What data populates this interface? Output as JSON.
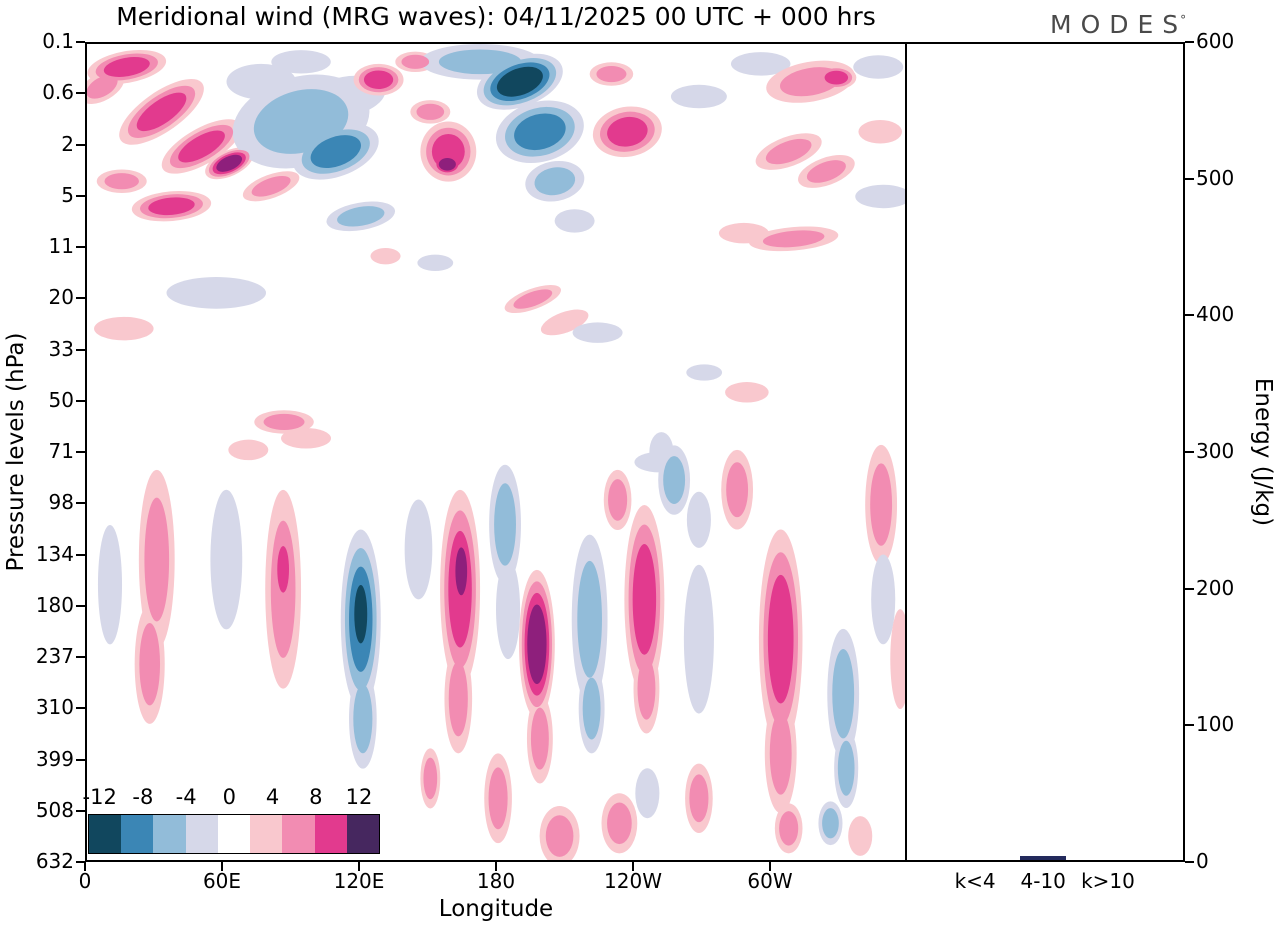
{
  "title": "Meridional wind (MRG waves):  04/11/2025  00 UTC  + 000 hrs",
  "logo": {
    "text": "MODES",
    "mark": "°"
  },
  "chart_data": {
    "type": "heatmap",
    "title": "Meridional wind (MRG waves):  04/11/2025  00 UTC  + 000 hrs",
    "xlabel": "Longitude",
    "ylabel_left": "Pressure levels (hPa)",
    "ylabel_right": "Energy (J/kg)",
    "x_ticks": [
      "0",
      "60E",
      "120E",
      "180",
      "120W",
      "60W"
    ],
    "x_tick_lons": [
      0,
      60,
      120,
      180,
      240,
      300
    ],
    "x_range_deg": [
      0,
      360
    ],
    "pressure_ticks": [
      "0.1",
      "0.6",
      "2",
      "5",
      "11",
      "20",
      "33",
      "50",
      "71",
      "98",
      "134",
      "180",
      "237",
      "310",
      "399",
      "508",
      "632"
    ],
    "energy_ticks": [
      "0",
      "100",
      "200",
      "300",
      "400",
      "500",
      "600"
    ],
    "energy_range": [
      0,
      600
    ],
    "grid": false,
    "colorbar": {
      "labels": [
        "-12",
        "-8",
        "-4",
        "0",
        "4",
        "8",
        "12"
      ],
      "segments": [
        "#11475e",
        "#3b86b5",
        "#92bcd9",
        "#d6d8e9",
        "#ffffff",
        "#f9c8ce",
        "#f28cb2",
        "#e23a8e",
        "#46275f"
      ]
    },
    "palette": {
      "negative": [
        "#d6d8e9",
        "#92bcd9",
        "#3b86b5",
        "#11475e"
      ],
      "positive": [
        "#f9c8ce",
        "#f28cb2",
        "#e23a8e",
        "#8e1f7c"
      ]
    },
    "features_legend": [
      "lon_deg",
      "level_index_0.1_to_632",
      "rx_deg",
      "ry_levels",
      "rot_deg",
      "amplitude"
    ],
    "features": [
      [
        17.5,
        0.45,
        17.5,
        0.31,
        -10,
        11
      ],
      [
        6.6,
        0.84,
        10.9,
        0.27,
        -30,
        7
      ],
      [
        32.8,
        1.33,
        21.9,
        0.39,
        -35,
        9
      ],
      [
        50.4,
        2.01,
        19.7,
        0.35,
        -30,
        10
      ],
      [
        62.6,
        2.34,
        11.4,
        0.25,
        -25,
        14
      ],
      [
        81.0,
        2.79,
        13.1,
        0.23,
        -20,
        6
      ],
      [
        37.2,
        3.18,
        17.5,
        0.29,
        -5,
        11
      ],
      [
        15.3,
        2.69,
        11.0,
        0.23,
        0,
        5
      ],
      [
        94.2,
        1.52,
        30.7,
        0.88,
        -15,
        -6
      ],
      [
        109.5,
        2.11,
        19.7,
        0.49,
        -20,
        -9
      ],
      [
        113.9,
        1.03,
        17.5,
        0.39,
        -10,
        -4
      ],
      [
        76.7,
        0.74,
        15.3,
        0.35,
        0,
        -4
      ],
      [
        120.5,
        3.38,
        15.3,
        0.27,
        -10,
        -7
      ],
      [
        94.2,
        0.35,
        13.1,
        0.23,
        0,
        -4
      ],
      [
        128.3,
        0.7,
        11.0,
        0.31,
        0,
        9
      ],
      [
        144.5,
        0.35,
        8.8,
        0.2,
        0,
        5
      ],
      [
        190.5,
        0.74,
        19.7,
        0.49,
        -20,
        -15
      ],
      [
        199.3,
        1.72,
        19.7,
        0.59,
        -15,
        -11
      ],
      [
        205.9,
        2.69,
        13.1,
        0.39,
        -10,
        -8
      ],
      [
        173.0,
        0.35,
        26.3,
        0.35,
        0,
        -6
      ],
      [
        214.6,
        3.47,
        8.8,
        0.23,
        0,
        -4
      ],
      [
        159.0,
        2.11,
        12.3,
        0.59,
        0,
        10
      ],
      [
        158.6,
        2.36,
        7.0,
        0.23,
        0,
        13
      ],
      [
        151.1,
        1.33,
        8.8,
        0.23,
        0,
        5
      ],
      [
        237.8,
        1.72,
        15.3,
        0.49,
        -10,
        9
      ],
      [
        230.8,
        0.59,
        9.6,
        0.23,
        0,
        7
      ],
      [
        269.3,
        1.03,
        12.3,
        0.23,
        0,
        -4
      ],
      [
        296.5,
        0.39,
        13.1,
        0.23,
        0,
        -4
      ],
      [
        318.4,
        0.74,
        19.7,
        0.39,
        -10,
        8
      ],
      [
        329.8,
        0.66,
        8.8,
        0.23,
        0,
        11
      ],
      [
        348.2,
        0.45,
        11.0,
        0.23,
        0,
        -4
      ],
      [
        349.1,
        1.72,
        9.6,
        0.23,
        0,
        4
      ],
      [
        308.8,
        2.11,
        15.3,
        0.29,
        -20,
        7
      ],
      [
        325.4,
        2.5,
        13.1,
        0.27,
        -20,
        5
      ],
      [
        350.4,
        2.99,
        12.3,
        0.23,
        0,
        -4
      ],
      [
        311.0,
        3.82,
        19.7,
        0.23,
        -5,
        6
      ],
      [
        289.1,
        3.71,
        11.0,
        0.2,
        0,
        4
      ],
      [
        56.9,
        4.88,
        21.9,
        0.31,
        0,
        -3
      ],
      [
        16.2,
        5.58,
        13.1,
        0.23,
        0,
        4
      ],
      [
        196.2,
        5.0,
        13.1,
        0.2,
        -20,
        5
      ],
      [
        210.2,
        5.46,
        11.0,
        0.2,
        -20,
        4
      ],
      [
        224.7,
        5.66,
        11.0,
        0.2,
        0,
        -3
      ],
      [
        153.3,
        4.29,
        7.9,
        0.16,
        0,
        -3
      ],
      [
        131.4,
        4.16,
        6.6,
        0.16,
        0,
        4
      ],
      [
        86.7,
        7.41,
        13.1,
        0.23,
        0,
        5
      ],
      [
        96.4,
        7.73,
        11.0,
        0.2,
        0,
        4
      ],
      [
        71.0,
        7.96,
        8.8,
        0.2,
        0,
        4
      ],
      [
        251.9,
        8.2,
        11.0,
        0.2,
        0,
        -3
      ],
      [
        290.4,
        6.83,
        9.6,
        0.2,
        0,
        4
      ],
      [
        271.6,
        6.44,
        7.9,
        0.16,
        0,
        -3
      ],
      [
        30.7,
        10.11,
        7.9,
        1.76,
        0,
        6
      ],
      [
        27.6,
        12.16,
        6.6,
        1.17,
        0,
        5
      ],
      [
        10.1,
        10.6,
        5.3,
        1.17,
        0,
        -3
      ],
      [
        61.3,
        10.11,
        7.0,
        1.37,
        0,
        -4
      ],
      [
        86.3,
        10.69,
        7.9,
        1.95,
        0,
        7
      ],
      [
        86.3,
        10.3,
        4.4,
        0.78,
        0,
        9
      ],
      [
        120.5,
        11.28,
        8.8,
        1.76,
        0,
        -12
      ],
      [
        120.5,
        11.18,
        5.3,
        1.07,
        0,
        -14
      ],
      [
        121.4,
        13.23,
        6.1,
        0.98,
        0,
        -6
      ],
      [
        145.9,
        9.91,
        6.1,
        0.98,
        0,
        -4
      ],
      [
        164.2,
        10.69,
        8.8,
        1.95,
        0,
        12
      ],
      [
        164.7,
        10.34,
        4.8,
        0.88,
        0,
        14
      ],
      [
        163.4,
        12.84,
        6.1,
        1.07,
        0,
        6
      ],
      [
        184.0,
        9.42,
        7.0,
        1.17,
        0,
        -7
      ],
      [
        185.3,
        11.08,
        5.3,
        0.98,
        0,
        -4
      ],
      [
        198.0,
        11.77,
        7.9,
        1.46,
        0,
        13
      ],
      [
        199.3,
        13.62,
        5.7,
        0.88,
        0,
        7
      ],
      [
        221.2,
        11.28,
        7.9,
        1.66,
        0,
        -8
      ],
      [
        222.1,
        13.03,
        5.7,
        0.88,
        0,
        -5
      ],
      [
        245.3,
        10.89,
        8.8,
        1.85,
        0,
        10
      ],
      [
        246.2,
        12.64,
        5.7,
        0.88,
        0,
        6
      ],
      [
        269.3,
        11.67,
        6.6,
        1.46,
        0,
        -4
      ],
      [
        286.1,
        8.74,
        7.0,
        0.78,
        0,
        6
      ],
      [
        305.3,
        11.67,
        9.6,
        2.15,
        0,
        11
      ],
      [
        305.3,
        13.91,
        7.0,
        1.17,
        0,
        7
      ],
      [
        332.8,
        12.74,
        7.0,
        1.27,
        0,
        -8
      ],
      [
        334.1,
        14.2,
        5.3,
        0.78,
        0,
        -5
      ],
      [
        349.5,
        9.03,
        7.0,
        1.17,
        0,
        8
      ],
      [
        350.4,
        10.89,
        5.3,
        0.88,
        0,
        -3
      ],
      [
        357.9,
        12.06,
        4.4,
        0.98,
        0,
        4
      ],
      [
        258.4,
        8.55,
        7.0,
        0.68,
        0,
        -6
      ],
      [
        252.8,
        8.0,
        5.3,
        0.39,
        0,
        -4
      ],
      [
        233.5,
        8.94,
        6.1,
        0.59,
        0,
        5
      ],
      [
        269.3,
        9.33,
        5.3,
        0.55,
        0,
        -4
      ],
      [
        180.9,
        14.79,
        6.1,
        0.88,
        0,
        6
      ],
      [
        208.0,
        15.53,
        8.8,
        0.59,
        0,
        5
      ],
      [
        234.3,
        15.28,
        7.9,
        0.59,
        0,
        6
      ],
      [
        246.6,
        14.69,
        5.3,
        0.49,
        0,
        -3
      ],
      [
        269.3,
        14.79,
        6.1,
        0.68,
        0,
        5
      ],
      [
        308.8,
        15.38,
        6.1,
        0.49,
        0,
        5
      ],
      [
        327.2,
        15.28,
        5.3,
        0.43,
        0,
        -5
      ],
      [
        340.3,
        15.53,
        5.3,
        0.39,
        0,
        4
      ],
      [
        151.1,
        14.4,
        4.4,
        0.59,
        0,
        5
      ]
    ],
    "energy_bars": {
      "categories": [
        "k<4",
        "4-10",
        "k>10"
      ],
      "values": [
        0,
        3,
        0
      ],
      "bar_color": "#232a5c"
    }
  }
}
